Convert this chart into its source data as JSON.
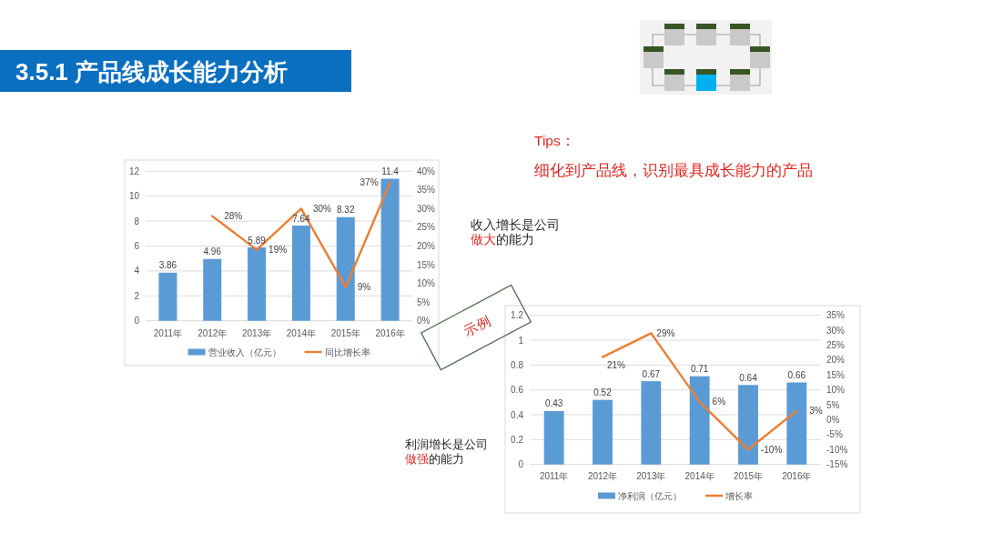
{
  "chart_data": [
    {
      "type": "other",
      "title": "3.5.1 产品线成长能力分析",
      "annotations": [
        "Tips：",
        "细化到产品线，识别最具成长能力的产品",
        "收入增长是公司",
        "做大",
        "的能力",
        "示例",
        "利润增长是公司",
        "做强",
        "的能力"
      ]
    },
    {
      "type": "bar",
      "categories": [
        "2011年",
        "2012年",
        "2013年",
        "2014年",
        "2015年",
        "2016年"
      ],
      "series": [
        {
          "name": "营业收入（亿元）",
          "type": "bar",
          "color": "#5b9bd5",
          "values": [
            3.86,
            4.96,
            5.89,
            7.64,
            8.32,
            11.4
          ],
          "value_labels": [
            "3.86",
            "4.96",
            "5.89",
            "7.64",
            "8.32",
            "11.4"
          ]
        },
        {
          "name": "同比增长率",
          "type": "line",
          "axis": "y2",
          "color": "#ed7d31",
          "values": [
            null,
            28,
            19,
            30,
            9,
            37
          ],
          "value_labels": [
            null,
            "28%",
            "19%",
            "30%",
            "9%",
            "37%"
          ]
        }
      ],
      "ylim": [
        0,
        12
      ],
      "yticks": [
        0,
        2,
        4,
        6,
        8,
        10,
        12
      ],
      "y2lim": [
        0,
        40
      ],
      "y2ticks": [
        {
          "value": 0,
          "label": "0%"
        },
        {
          "value": 5,
          "label": "5%"
        },
        {
          "value": 10,
          "label": "10%"
        },
        {
          "value": 15,
          "label": "15%"
        },
        {
          "value": 20,
          "label": "20%"
        },
        {
          "value": 25,
          "label": "25%"
        },
        {
          "value": 30,
          "label": "30%"
        },
        {
          "value": 35,
          "label": "35%"
        },
        {
          "value": 40,
          "label": "40%"
        }
      ],
      "grid": "y",
      "legend": "bottom"
    },
    {
      "type": "bar",
      "categories": [
        "2011年",
        "2012年",
        "2013年",
        "2014年",
        "2015年",
        "2016年"
      ],
      "series": [
        {
          "name": "净利润（亿元）",
          "type": "bar",
          "color": "#5b9bd5",
          "values": [
            0.43,
            0.52,
            0.67,
            0.71,
            0.64,
            0.66
          ],
          "value_labels": [
            "0.43",
            "0.52",
            "0.67",
            "0.71",
            "0.64",
            "0.66"
          ]
        },
        {
          "name": "增长率",
          "type": "line",
          "axis": "y2",
          "color": "#ed7d31",
          "values": [
            null,
            21,
            29,
            6,
            -10,
            3
          ],
          "value_labels": [
            null,
            "21%",
            "29%",
            "6%",
            "-10%",
            "3%"
          ]
        }
      ],
      "ylim": [
        0,
        1.2
      ],
      "yticks": [
        0,
        0.2,
        0.4,
        0.6,
        0.8,
        1,
        1.2
      ],
      "y2lim": [
        -15,
        35
      ],
      "y2ticks": [
        {
          "value": -15,
          "label": "-15%"
        },
        {
          "value": -10,
          "label": "-10%"
        },
        {
          "value": -5,
          "label": "-5%"
        },
        {
          "value": 0,
          "label": "0%"
        },
        {
          "value": 5,
          "label": "5%"
        },
        {
          "value": 10,
          "label": "10%"
        },
        {
          "value": 15,
          "label": "15%"
        },
        {
          "value": 20,
          "label": "20%"
        },
        {
          "value": 25,
          "label": "25%"
        },
        {
          "value": 30,
          "label": "30%"
        },
        {
          "value": 35,
          "label": "35%"
        }
      ],
      "grid": "y",
      "legend": "bottom"
    }
  ]
}
